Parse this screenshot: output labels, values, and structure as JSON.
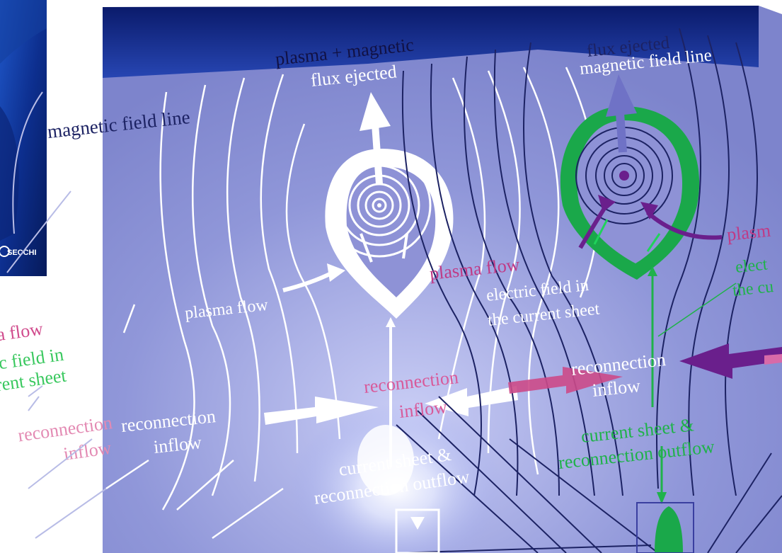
{
  "colors": {
    "background": "#ffffff",
    "space_dark": "#0a1a5e",
    "space_mid": "#1d3aa0",
    "diagram_fill": "#8e92d6",
    "field_white": "#ffffff",
    "field_dark": "#1b1f5a",
    "plasma_magenta": "#c03a86",
    "reconnection_pink": "#d85a9a",
    "sheet_green": "#1fb24a",
    "purple_arrow": "#6a1f8c",
    "flux_green": "#1aa84a"
  },
  "icons": {
    "secchi_logo": "secchi-logo-icon"
  },
  "inset": {
    "logo_text": "SECCHI"
  },
  "left_fragment": {
    "plasma_flow": "a flow",
    "electric_field_1": "ic field in",
    "electric_field_2": "rrent sheet",
    "reconnection_inflow_1": "reconnection",
    "reconnection_inflow_2": "inflow"
  },
  "white_diagram": {
    "ejected_1": "plasma + magnetic",
    "ejected_2": "flux ejected",
    "field_line": "magnetic field line",
    "plasma_flow": "plasma flow",
    "reconnection_inflow_1": "reconnection",
    "reconnection_inflow_2": "inflow",
    "current_sheet_1": "current sheet &",
    "current_sheet_2": "reconnection outflow"
  },
  "color_diagram": {
    "flux_ejected": "flux ejected",
    "field_line": "magnetic field line",
    "plasma_flow_1": "plasma flow",
    "plasma_flow_2": "plasm",
    "electric_field_1": "electric field in",
    "electric_field_2": "the current sheet",
    "electric_field_right_1": "elect",
    "electric_field_right_2": "the cu",
    "reconnection_inflow_1": "reconnection",
    "reconnection_inflow_2": "inflow",
    "reconnection_inflow_pink_1": "reconnection",
    "reconnection_inflow_pink_2": "inflow",
    "current_sheet_1": "current sheet &",
    "current_sheet_2": "reconnection outflow"
  }
}
